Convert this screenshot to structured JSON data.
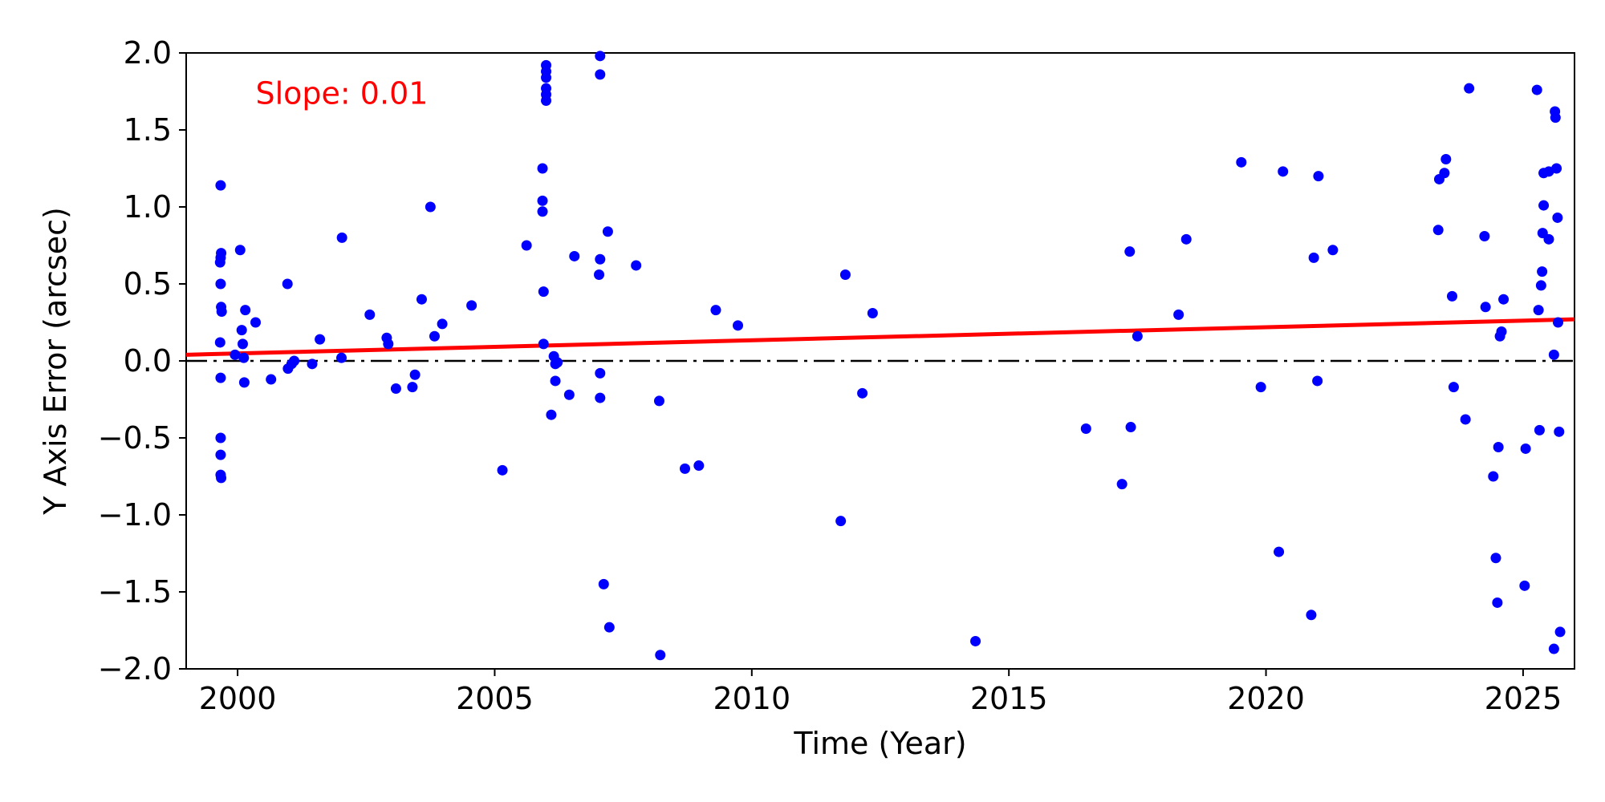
{
  "chart_data": {
    "type": "scatter",
    "xlabel": "Time (Year)",
    "ylabel": "Y Axis Error (arcsec)",
    "xlim": [
      1999,
      2026
    ],
    "ylim": [
      -2.0,
      2.0
    ],
    "x_ticks": [
      2000,
      2005,
      2010,
      2015,
      2020,
      2025
    ],
    "x_tick_labels": [
      "2000",
      "2005",
      "2010",
      "2015",
      "2020",
      "2025"
    ],
    "y_ticks": [
      -2.0,
      -1.5,
      -1.0,
      -0.5,
      0.0,
      0.5,
      1.0,
      1.5,
      2.0
    ],
    "y_tick_labels": [
      "−2.0",
      "−1.5",
      "−1.0",
      "−0.5",
      "0.0",
      "0.5",
      "1.0",
      "1.5",
      "2.0"
    ],
    "grid": false,
    "annotation": {
      "text": "Slope: 0.01",
      "color": "#ff0000",
      "x": 2000.35,
      "y": 1.67
    },
    "reference_line": {
      "y": 0.0,
      "style": "dashdot",
      "color": "#000000"
    },
    "fit_line": {
      "color": "#ff0000",
      "x": [
        1999,
        2026
      ],
      "y": [
        0.04,
        0.27
      ]
    },
    "point_color": "#0000ff",
    "points": [
      [
        1999.67,
        1.14
      ],
      [
        1999.68,
        0.7
      ],
      [
        1999.67,
        0.67
      ],
      [
        1999.66,
        0.64
      ],
      [
        1999.67,
        0.5
      ],
      [
        1999.68,
        0.35
      ],
      [
        1999.69,
        0.32
      ],
      [
        1999.66,
        0.12
      ],
      [
        1999.67,
        -0.11
      ],
      [
        1999.67,
        -0.5
      ],
      [
        1999.67,
        -0.61
      ],
      [
        1999.67,
        -0.74
      ],
      [
        1999.68,
        -0.76
      ],
      [
        1999.95,
        0.04
      ],
      [
        2000.05,
        0.72
      ],
      [
        2000.08,
        0.2
      ],
      [
        2000.1,
        0.11
      ],
      [
        2000.12,
        0.02
      ],
      [
        2000.13,
        -0.14
      ],
      [
        2000.15,
        0.33
      ],
      [
        2000.35,
        0.25
      ],
      [
        2000.65,
        -0.12
      ],
      [
        2000.97,
        0.5
      ],
      [
        2000.98,
        -0.05
      ],
      [
        2001.05,
        -0.02
      ],
      [
        2001.1,
        0.0
      ],
      [
        2001.45,
        -0.02
      ],
      [
        2001.6,
        0.14
      ],
      [
        2002.03,
        0.8
      ],
      [
        2002.02,
        0.02
      ],
      [
        2002.57,
        0.3
      ],
      [
        2002.9,
        0.15
      ],
      [
        2002.93,
        0.11
      ],
      [
        2003.08,
        -0.18
      ],
      [
        2003.4,
        -0.17
      ],
      [
        2003.45,
        -0.09
      ],
      [
        2003.58,
        0.4
      ],
      [
        2003.75,
        1.0
      ],
      [
        2003.83,
        0.16
      ],
      [
        2003.98,
        0.24
      ],
      [
        2004.55,
        0.36
      ],
      [
        2005.15,
        -0.71
      ],
      [
        2005.62,
        0.75
      ],
      [
        2005.93,
        1.25
      ],
      [
        2005.93,
        1.04
      ],
      [
        2005.93,
        0.97
      ],
      [
        2005.95,
        0.45
      ],
      [
        2005.95,
        0.11
      ],
      [
        2006.0,
        1.92
      ],
      [
        2006.0,
        1.88
      ],
      [
        2006.0,
        1.84
      ],
      [
        2006.0,
        1.77
      ],
      [
        2006.0,
        1.73
      ],
      [
        2006.0,
        1.69
      ],
      [
        2006.1,
        -0.35
      ],
      [
        2006.15,
        0.03
      ],
      [
        2006.18,
        -0.02
      ],
      [
        2006.22,
        -0.01
      ],
      [
        2006.18,
        -0.13
      ],
      [
        2006.45,
        -0.22
      ],
      [
        2006.55,
        0.68
      ],
      [
        2007.05,
        1.98
      ],
      [
        2007.05,
        1.86
      ],
      [
        2007.05,
        0.66
      ],
      [
        2007.03,
        0.56
      ],
      [
        2007.05,
        -0.08
      ],
      [
        2007.05,
        -0.24
      ],
      [
        2007.12,
        -1.45
      ],
      [
        2007.2,
        0.84
      ],
      [
        2007.23,
        -1.73
      ],
      [
        2007.75,
        0.62
      ],
      [
        2008.2,
        -0.26
      ],
      [
        2008.22,
        -1.91
      ],
      [
        2008.7,
        -0.7
      ],
      [
        2008.97,
        -0.68
      ],
      [
        2009.3,
        0.33
      ],
      [
        2009.73,
        0.23
      ],
      [
        2011.73,
        -1.04
      ],
      [
        2011.82,
        0.56
      ],
      [
        2012.15,
        -0.21
      ],
      [
        2012.35,
        0.31
      ],
      [
        2014.35,
        -1.82
      ],
      [
        2016.5,
        -0.44
      ],
      [
        2017.2,
        -0.8
      ],
      [
        2017.35,
        0.71
      ],
      [
        2017.37,
        -0.43
      ],
      [
        2017.5,
        0.16
      ],
      [
        2018.3,
        0.3
      ],
      [
        2018.45,
        0.79
      ],
      [
        2019.52,
        1.29
      ],
      [
        2019.9,
        -0.17
      ],
      [
        2020.25,
        -1.24
      ],
      [
        2020.33,
        1.23
      ],
      [
        2020.88,
        -1.65
      ],
      [
        2020.93,
        0.67
      ],
      [
        2021.0,
        -0.13
      ],
      [
        2021.02,
        1.2
      ],
      [
        2021.3,
        0.72
      ],
      [
        2023.35,
        0.85
      ],
      [
        2023.37,
        1.18
      ],
      [
        2023.47,
        1.22
      ],
      [
        2023.5,
        1.31
      ],
      [
        2023.62,
        0.42
      ],
      [
        2023.65,
        -0.17
      ],
      [
        2023.88,
        -0.38
      ],
      [
        2023.95,
        1.77
      ],
      [
        2024.25,
        0.81
      ],
      [
        2024.27,
        0.35
      ],
      [
        2024.42,
        -0.75
      ],
      [
        2024.47,
        -1.28
      ],
      [
        2024.5,
        -1.57
      ],
      [
        2024.52,
        -0.56
      ],
      [
        2024.55,
        0.16
      ],
      [
        2024.58,
        0.19
      ],
      [
        2024.62,
        0.4
      ],
      [
        2025.03,
        -1.46
      ],
      [
        2025.05,
        -0.57
      ],
      [
        2025.27,
        1.76
      ],
      [
        2025.3,
        0.33
      ],
      [
        2025.32,
        -0.45
      ],
      [
        2025.35,
        0.49
      ],
      [
        2025.37,
        0.58
      ],
      [
        2025.38,
        0.83
      ],
      [
        2025.4,
        1.01
      ],
      [
        2025.4,
        1.22
      ],
      [
        2025.5,
        1.23
      ],
      [
        2025.5,
        0.79
      ],
      [
        2025.6,
        0.04
      ],
      [
        2025.62,
        1.62
      ],
      [
        2025.63,
        1.58
      ],
      [
        2025.65,
        1.25
      ],
      [
        2025.67,
        0.93
      ],
      [
        2025.68,
        0.25
      ],
      [
        2025.7,
        -0.46
      ],
      [
        2025.72,
        -1.76
      ],
      [
        2025.6,
        -1.87
      ]
    ]
  }
}
